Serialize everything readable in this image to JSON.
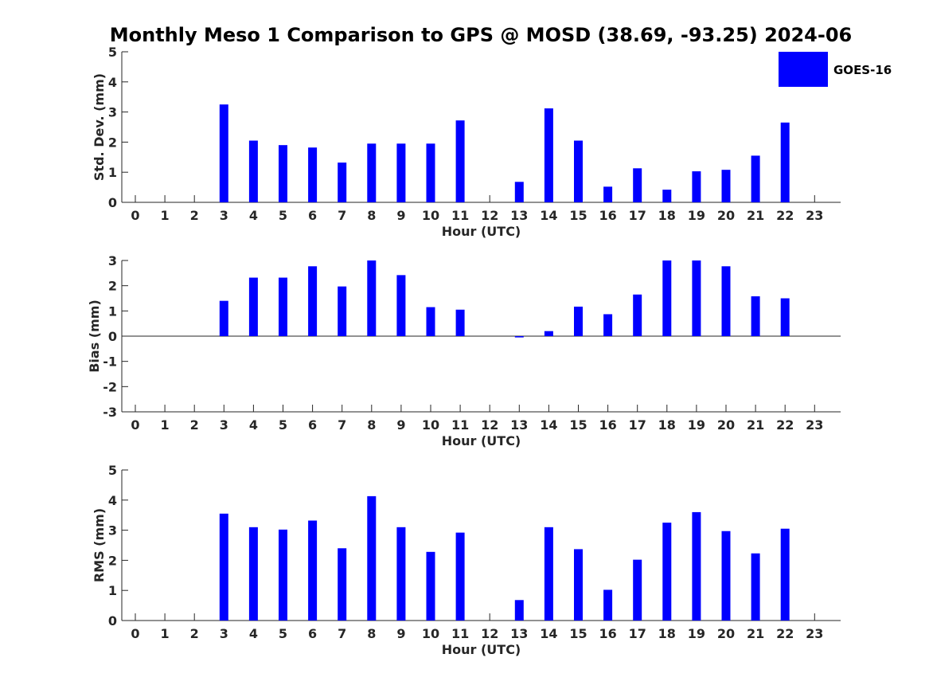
{
  "chart_data": {
    "title": "Monthly Meso 1 Comparison to GPS @ MOSD (38.69, -93.25) 2024-06",
    "legend": {
      "label": "GOES-16",
      "color": "#0000ff",
      "placement": "top-right"
    },
    "panels": [
      {
        "type": "bar",
        "ylabel": "Std. Dev. (mm)",
        "xlabel": "Hour (UTC)",
        "ylim": [
          0,
          5
        ],
        "yticks": [
          "0",
          "1",
          "2",
          "3",
          "4",
          "5"
        ],
        "x": [
          "0",
          "1",
          "2",
          "3",
          "4",
          "5",
          "6",
          "7",
          "8",
          "9",
          "10",
          "11",
          "12",
          "13",
          "14",
          "15",
          "16",
          "17",
          "18",
          "19",
          "20",
          "21",
          "22",
          "23"
        ],
        "values": [
          null,
          null,
          null,
          3.25,
          2.05,
          1.9,
          1.82,
          1.32,
          1.95,
          1.95,
          1.95,
          2.72,
          null,
          0.68,
          3.12,
          2.05,
          0.52,
          1.13,
          0.42,
          1.03,
          1.08,
          1.55,
          2.65,
          null
        ]
      },
      {
        "type": "bar",
        "ylabel": "Bias (mm)",
        "xlabel": "Hour (UTC)",
        "ylim": [
          -3,
          3
        ],
        "yticks": [
          "-3",
          "-2",
          "-1",
          "0",
          "1",
          "2",
          "3"
        ],
        "x": [
          "0",
          "1",
          "2",
          "3",
          "4",
          "5",
          "6",
          "7",
          "8",
          "9",
          "10",
          "11",
          "12",
          "13",
          "14",
          "15",
          "16",
          "17",
          "18",
          "19",
          "20",
          "21",
          "22",
          "23"
        ],
        "values": [
          null,
          null,
          null,
          1.4,
          2.32,
          2.32,
          2.77,
          1.97,
          3.0,
          2.42,
          1.15,
          1.05,
          null,
          -0.05,
          0.2,
          1.17,
          0.87,
          1.65,
          3.0,
          3.0,
          2.77,
          1.58,
          1.5,
          null
        ]
      },
      {
        "type": "bar",
        "ylabel": "RMS (mm)",
        "xlabel": "Hour (UTC)",
        "ylim": [
          0,
          5
        ],
        "yticks": [
          "0",
          "1",
          "2",
          "3",
          "4",
          "5"
        ],
        "x": [
          "0",
          "1",
          "2",
          "3",
          "4",
          "5",
          "6",
          "7",
          "8",
          "9",
          "10",
          "11",
          "12",
          "13",
          "14",
          "15",
          "16",
          "17",
          "18",
          "19",
          "20",
          "21",
          "22",
          "23"
        ],
        "values": [
          null,
          null,
          null,
          3.55,
          3.1,
          3.02,
          3.32,
          2.4,
          4.13,
          3.1,
          2.28,
          2.92,
          null,
          0.68,
          3.1,
          2.37,
          1.02,
          2.02,
          3.25,
          3.6,
          2.97,
          2.23,
          3.05,
          null
        ]
      }
    ]
  }
}
